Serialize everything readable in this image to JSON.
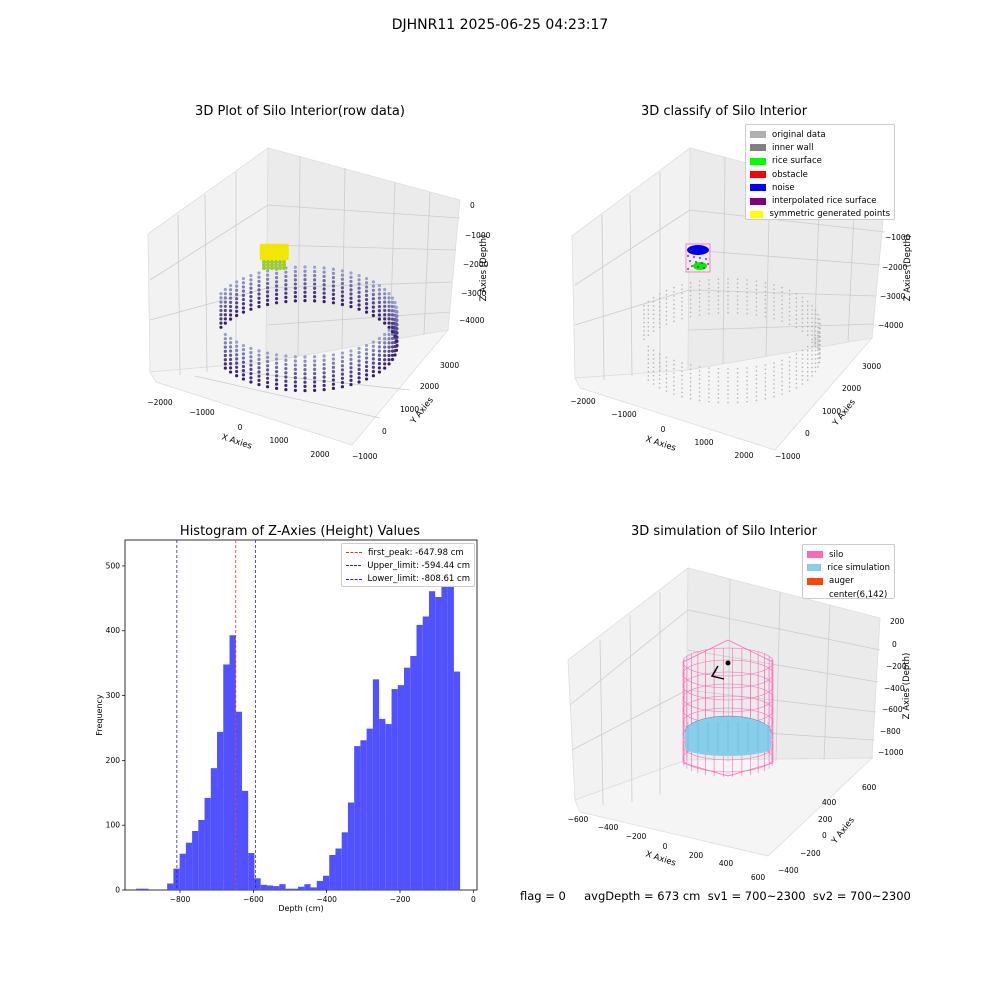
{
  "suptitle": "DJHNR11 2025-06-25 04:23:17",
  "colors": {
    "hist_bar": "#4b4bff",
    "first_peak": "#e03030",
    "limit_lines": "#2020d0",
    "silo": "#ff69b4",
    "rice_sim": "#87ceeb",
    "auger": "#ff4500"
  },
  "panels": {
    "raw": {
      "title": "3D Plot of Silo Interior(row data)",
      "xlabel": "X Axies",
      "ylabel": "Y Axies",
      "zlabel": "Z Axies (Depth)",
      "xticks": [
        "−2000",
        "−1000",
        "0",
        "1000",
        "2000"
      ],
      "yticks": [
        "−1000",
        "0",
        "1000",
        "2000",
        "3000"
      ],
      "zticks": [
        "0",
        "−1000",
        "−2000",
        "−3000",
        "−4000"
      ]
    },
    "classify": {
      "title": "3D classify of Silo Interior",
      "xlabel": "X Axies",
      "ylabel": "Y Axies",
      "zlabel": "Z Axies (Depth)",
      "xticks": [
        "−2000",
        "−1000",
        "0",
        "1000",
        "2000"
      ],
      "yticks": [
        "−1000",
        "0",
        "1000",
        "2000",
        "3000"
      ],
      "zticks": [
        "−1000",
        "−2000",
        "−3000",
        "−4000"
      ],
      "legend": [
        {
          "label": "original data",
          "color": "#b0b0b0"
        },
        {
          "label": "inner wall",
          "color": "#808080"
        },
        {
          "label": "rice surface",
          "color": "#00ff00"
        },
        {
          "label": "obstacle",
          "color": "#ff0000"
        },
        {
          "label": "noise",
          "color": "#0000ff"
        },
        {
          "label": "interpolated rice surface",
          "color": "#800080"
        },
        {
          "label": "symmetric generated points",
          "color": "#ffff00"
        }
      ]
    },
    "simulation": {
      "title": "3D simulation of Silo Interior",
      "xlabel": "X Axies",
      "ylabel": "Y Axies",
      "zlabel": "Z Axies (Depth)",
      "xticks": [
        "−600",
        "−400",
        "−200",
        "0",
        "200",
        "400",
        "600"
      ],
      "yticks": [
        "−400",
        "−200",
        "0",
        "200",
        "400",
        "600"
      ],
      "zticks": [
        "200",
        "0",
        "−200",
        "−400",
        "−600",
        "−800",
        "−1000"
      ],
      "legend": [
        {
          "label": "silo",
          "color": "#ff69b4"
        },
        {
          "label": "rice simulation",
          "color": "#87ceeb"
        },
        {
          "label": "auger",
          "color": "#ff4500"
        },
        {
          "label": "center(6,142)",
          "color": "#ffffff"
        }
      ]
    }
  },
  "chart_data": {
    "type": "bar",
    "title": "Histogram of Z-Axies (Height) Values",
    "xlabel": "Depth (cm)",
    "ylabel": "Frequency",
    "xlim": [
      -950,
      10
    ],
    "ylim": [
      0,
      540
    ],
    "xticks": [
      -800,
      -600,
      -400,
      -200,
      0
    ],
    "yticks": [
      0,
      100,
      200,
      300,
      400,
      500
    ],
    "bin_width": 17,
    "bins": [
      {
        "x0": -920,
        "count": 2
      },
      {
        "x0": -903,
        "count": 2
      },
      {
        "x0": -835,
        "count": 10
      },
      {
        "x0": -818,
        "count": 33
      },
      {
        "x0": -801,
        "count": 56
      },
      {
        "x0": -784,
        "count": 73
      },
      {
        "x0": -767,
        "count": 91
      },
      {
        "x0": -750,
        "count": 108
      },
      {
        "x0": -733,
        "count": 142
      },
      {
        "x0": -716,
        "count": 188
      },
      {
        "x0": -699,
        "count": 244
      },
      {
        "x0": -682,
        "count": 348
      },
      {
        "x0": -665,
        "count": 393
      },
      {
        "x0": -648,
        "count": 275
      },
      {
        "x0": -631,
        "count": 153
      },
      {
        "x0": -614,
        "count": 57
      },
      {
        "x0": -597,
        "count": 18
      },
      {
        "x0": -580,
        "count": 8
      },
      {
        "x0": -563,
        "count": 7
      },
      {
        "x0": -546,
        "count": 6
      },
      {
        "x0": -529,
        "count": 9
      },
      {
        "x0": -512,
        "count": 2
      },
      {
        "x0": -495,
        "count": 2
      },
      {
        "x0": -478,
        "count": 5
      },
      {
        "x0": -461,
        "count": 9
      },
      {
        "x0": -444,
        "count": 4
      },
      {
        "x0": -427,
        "count": 14
      },
      {
        "x0": -410,
        "count": 22
      },
      {
        "x0": -393,
        "count": 54
      },
      {
        "x0": -376,
        "count": 64
      },
      {
        "x0": -359,
        "count": 89
      },
      {
        "x0": -342,
        "count": 135
      },
      {
        "x0": -325,
        "count": 222
      },
      {
        "x0": -308,
        "count": 231
      },
      {
        "x0": -291,
        "count": 249
      },
      {
        "x0": -274,
        "count": 325
      },
      {
        "x0": -257,
        "count": 264
      },
      {
        "x0": -240,
        "count": 256
      },
      {
        "x0": -223,
        "count": 310
      },
      {
        "x0": -206,
        "count": 316
      },
      {
        "x0": -189,
        "count": 343
      },
      {
        "x0": -172,
        "count": 361
      },
      {
        "x0": -155,
        "count": 409
      },
      {
        "x0": -138,
        "count": 422
      },
      {
        "x0": -121,
        "count": 461
      },
      {
        "x0": -104,
        "count": 452
      },
      {
        "x0": -87,
        "count": 511
      },
      {
        "x0": -70,
        "count": 482
      },
      {
        "x0": -53,
        "count": 337
      }
    ],
    "lines": [
      {
        "name": "first_peak: -647.98 cm",
        "x": -647.98,
        "color": "#e03030"
      },
      {
        "name": "Upper_limit: -594.44 cm",
        "x": -594.44,
        "color": "#2020d0"
      },
      {
        "name": "Lower_limit: -808.61 cm",
        "x": -808.61,
        "color": "#2020d0"
      }
    ]
  },
  "footer": "flag = 0     avgDepth = 673 cm  sv1 = 700~2300  sv2 = 700~2300"
}
